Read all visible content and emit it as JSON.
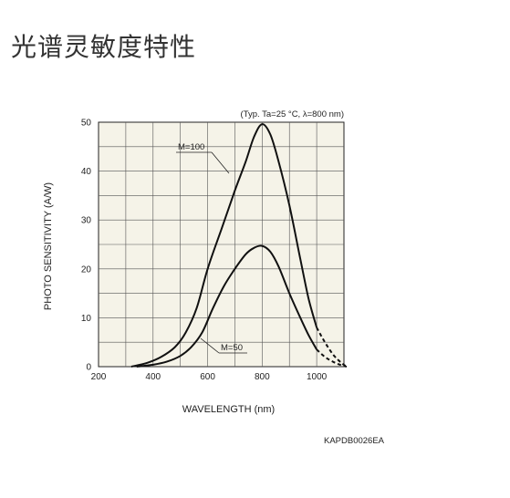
{
  "page": {
    "title": "光谱灵敏度特性"
  },
  "colors": {
    "plot_background": "#f5f3e8",
    "grid": "#555555",
    "curve": "#111111"
  },
  "chart_data": {
    "type": "line",
    "title": "",
    "condition": "(Typ. Ta=25 °C, λ=800 nm)",
    "xlabel": "WAVELENGTH (nm)",
    "ylabel": "PHOTO SENSITIVITY (A/W)",
    "xlim": [
      200,
      1100
    ],
    "ylim": [
      0,
      50
    ],
    "x_ticks": [
      200,
      400,
      600,
      800,
      1000
    ],
    "y_ticks": [
      0,
      10,
      20,
      30,
      40,
      50
    ],
    "grid": true,
    "code": "KAPDB0026EA",
    "series": [
      {
        "name": "M=100",
        "label": "M=100",
        "x": [
          320,
          380,
          430,
          480,
          520,
          560,
          600,
          650,
          700,
          740,
          770,
          800,
          830,
          860,
          900,
          940,
          970,
          1000
        ],
        "values": [
          0.0,
          0.8,
          2.0,
          4.0,
          7.0,
          12.0,
          20.0,
          28.0,
          36.0,
          42.0,
          47.0,
          49.6,
          47.5,
          42.0,
          33.0,
          22.0,
          14.0,
          8.0
        ],
        "dashed_x": [
          1000,
          1030,
          1060,
          1090,
          1110
        ],
        "dashed_values": [
          8.0,
          5.0,
          2.5,
          0.8,
          0.0
        ]
      },
      {
        "name": "M=50",
        "label": "M=50",
        "x": [
          340,
          400,
          450,
          500,
          540,
          580,
          620,
          660,
          700,
          740,
          770,
          800,
          830,
          860,
          900,
          940,
          970,
          1000
        ],
        "values": [
          0.0,
          0.4,
          1.0,
          2.2,
          4.0,
          7.0,
          12.0,
          16.5,
          20.0,
          23.0,
          24.3,
          24.7,
          23.5,
          20.5,
          15.0,
          10.0,
          6.5,
          3.5
        ],
        "dashed_x": [
          1000,
          1030,
          1060,
          1090,
          1110
        ],
        "dashed_values": [
          3.5,
          2.0,
          1.0,
          0.3,
          0.0
        ]
      }
    ]
  }
}
